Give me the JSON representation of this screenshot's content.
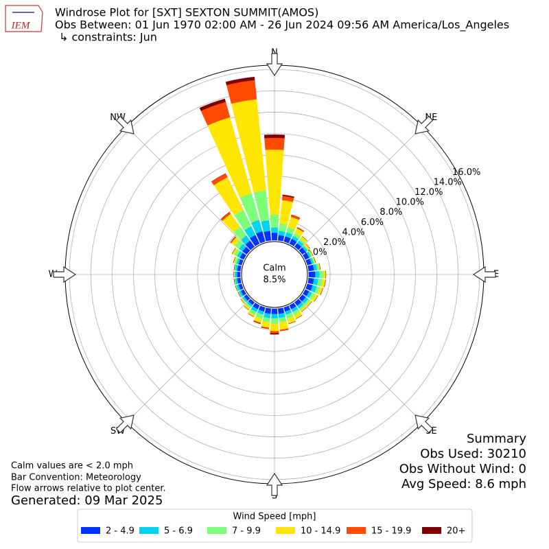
{
  "chart_data": {
    "type": "windrose",
    "logo_text": "IEM",
    "title": "Windrose Plot for [SXT] SEXTON SUMMIT(AMOS)",
    "subtitle": "Obs Between: 01 Jun 1970 02:00 AM - 26 Jun 2024 09:56 AM America/Los_Angeles",
    "constraints": "↳ constraints: Jun",
    "direction_labels": [
      "N",
      "NE",
      "E",
      "SE",
      "S",
      "SW",
      "W",
      "NW"
    ],
    "directions": [
      0,
      10,
      20,
      30,
      40,
      50,
      60,
      70,
      80,
      90,
      100,
      110,
      120,
      130,
      140,
      150,
      160,
      170,
      180,
      190,
      200,
      210,
      220,
      230,
      240,
      250,
      260,
      270,
      280,
      290,
      300,
      310,
      320,
      330,
      340,
      350
    ],
    "rlim": [
      0,
      16.4
    ],
    "rticks": [
      {
        "value": 0,
        "label": "0.0%"
      },
      {
        "value": 2,
        "label": "2.0%"
      },
      {
        "value": 4,
        "label": "4.0%"
      },
      {
        "value": 6,
        "label": "6.0%"
      },
      {
        "value": 8,
        "label": "8.0%"
      },
      {
        "value": 10,
        "label": "10.0%"
      },
      {
        "value": 12,
        "label": "12.0%"
      },
      {
        "value": 14,
        "label": "14.0%"
      },
      {
        "value": 16,
        "label": "16.0%"
      }
    ],
    "grid": true,
    "calm_label": "Calm",
    "calm_value": 8.5,
    "calm_value_label": "8.5%",
    "legend_title": "Wind Speed [mph]",
    "series": [
      {
        "name": "2 - 4.9",
        "color": "#0033ff",
        "values": [
          0.7,
          0.5,
          0.5,
          0.5,
          0.4,
          0.4,
          0.4,
          0.4,
          0.5,
          0.6,
          0.5,
          0.5,
          0.4,
          0.4,
          0.4,
          0.4,
          0.4,
          0.5,
          0.5,
          0.5,
          0.4,
          0.4,
          0.3,
          0.3,
          0.3,
          0.3,
          0.3,
          0.3,
          0.3,
          0.3,
          0.4,
          0.5,
          0.7,
          0.9,
          1.0,
          0.9
        ]
      },
      {
        "name": "5 - 6.9",
        "color": "#00d4f0",
        "values": [
          0.5,
          0.4,
          0.4,
          0.3,
          0.3,
          0.2,
          0.2,
          0.2,
          0.3,
          0.4,
          0.4,
          0.4,
          0.3,
          0.3,
          0.3,
          0.3,
          0.3,
          0.4,
          0.4,
          0.4,
          0.3,
          0.3,
          0.2,
          0.2,
          0.2,
          0.2,
          0.2,
          0.2,
          0.2,
          0.2,
          0.3,
          0.4,
          0.6,
          0.9,
          1.1,
          1.0
        ]
      },
      {
        "name": "7 - 9.9",
        "color": "#7cff79",
        "values": [
          1.2,
          0.7,
          0.5,
          0.3,
          0.2,
          0.1,
          0.1,
          0.1,
          0.2,
          0.4,
          0.4,
          0.3,
          0.3,
          0.2,
          0.2,
          0.3,
          0.4,
          0.4,
          0.5,
          0.4,
          0.4,
          0.3,
          0.2,
          0.1,
          0.1,
          0.1,
          0.1,
          0.1,
          0.1,
          0.2,
          0.3,
          0.5,
          1.0,
          1.7,
          2.6,
          2.8
        ]
      },
      {
        "name": "10 - 14.9",
        "color": "#ffe600",
        "values": [
          6.1,
          2.2,
          1.0,
          0.5,
          0.3,
          0.2,
          0.1,
          0.1,
          0.1,
          0.2,
          0.3,
          0.3,
          0.3,
          0.2,
          0.2,
          0.4,
          0.5,
          0.7,
          0.7,
          0.5,
          0.4,
          0.2,
          0.2,
          0.1,
          0,
          0,
          0,
          0,
          0,
          0.1,
          0.2,
          0.4,
          1.5,
          3.4,
          7.4,
          8.6
        ]
      },
      {
        "name": "15 - 19.9",
        "color": "#ff4a00",
        "values": [
          1.1,
          0.4,
          0.2,
          0.1,
          0,
          0,
          0,
          0,
          0,
          0,
          0,
          0,
          0,
          0,
          0,
          0,
          0,
          0.1,
          0.2,
          0.1,
          0.1,
          0,
          0,
          0,
          0,
          0,
          0,
          0,
          0,
          0,
          0,
          0.1,
          0.2,
          0.4,
          1.5,
          1.8
        ]
      },
      {
        "name": "20+",
        "color": "#800000",
        "values": [
          0.3,
          0.1,
          0,
          0,
          0,
          0,
          0,
          0,
          0,
          0,
          0,
          0,
          0,
          0,
          0,
          0,
          0,
          0,
          0.1,
          0,
          0,
          0,
          0,
          0,
          0,
          0,
          0,
          0,
          0,
          0,
          0,
          0,
          0,
          0,
          0.3,
          0.3
        ]
      }
    ],
    "notes": [
      "Calm values are < 2.0 mph",
      "Bar Convention: Meteorology",
      "Flow arrows relative to plot center."
    ],
    "generated": "Generated: 09 Mar 2025",
    "summary": [
      "Summary",
      "Obs Used: 30210",
      "Obs Without Wind: 0",
      "Avg Speed: 8.6 mph"
    ]
  }
}
